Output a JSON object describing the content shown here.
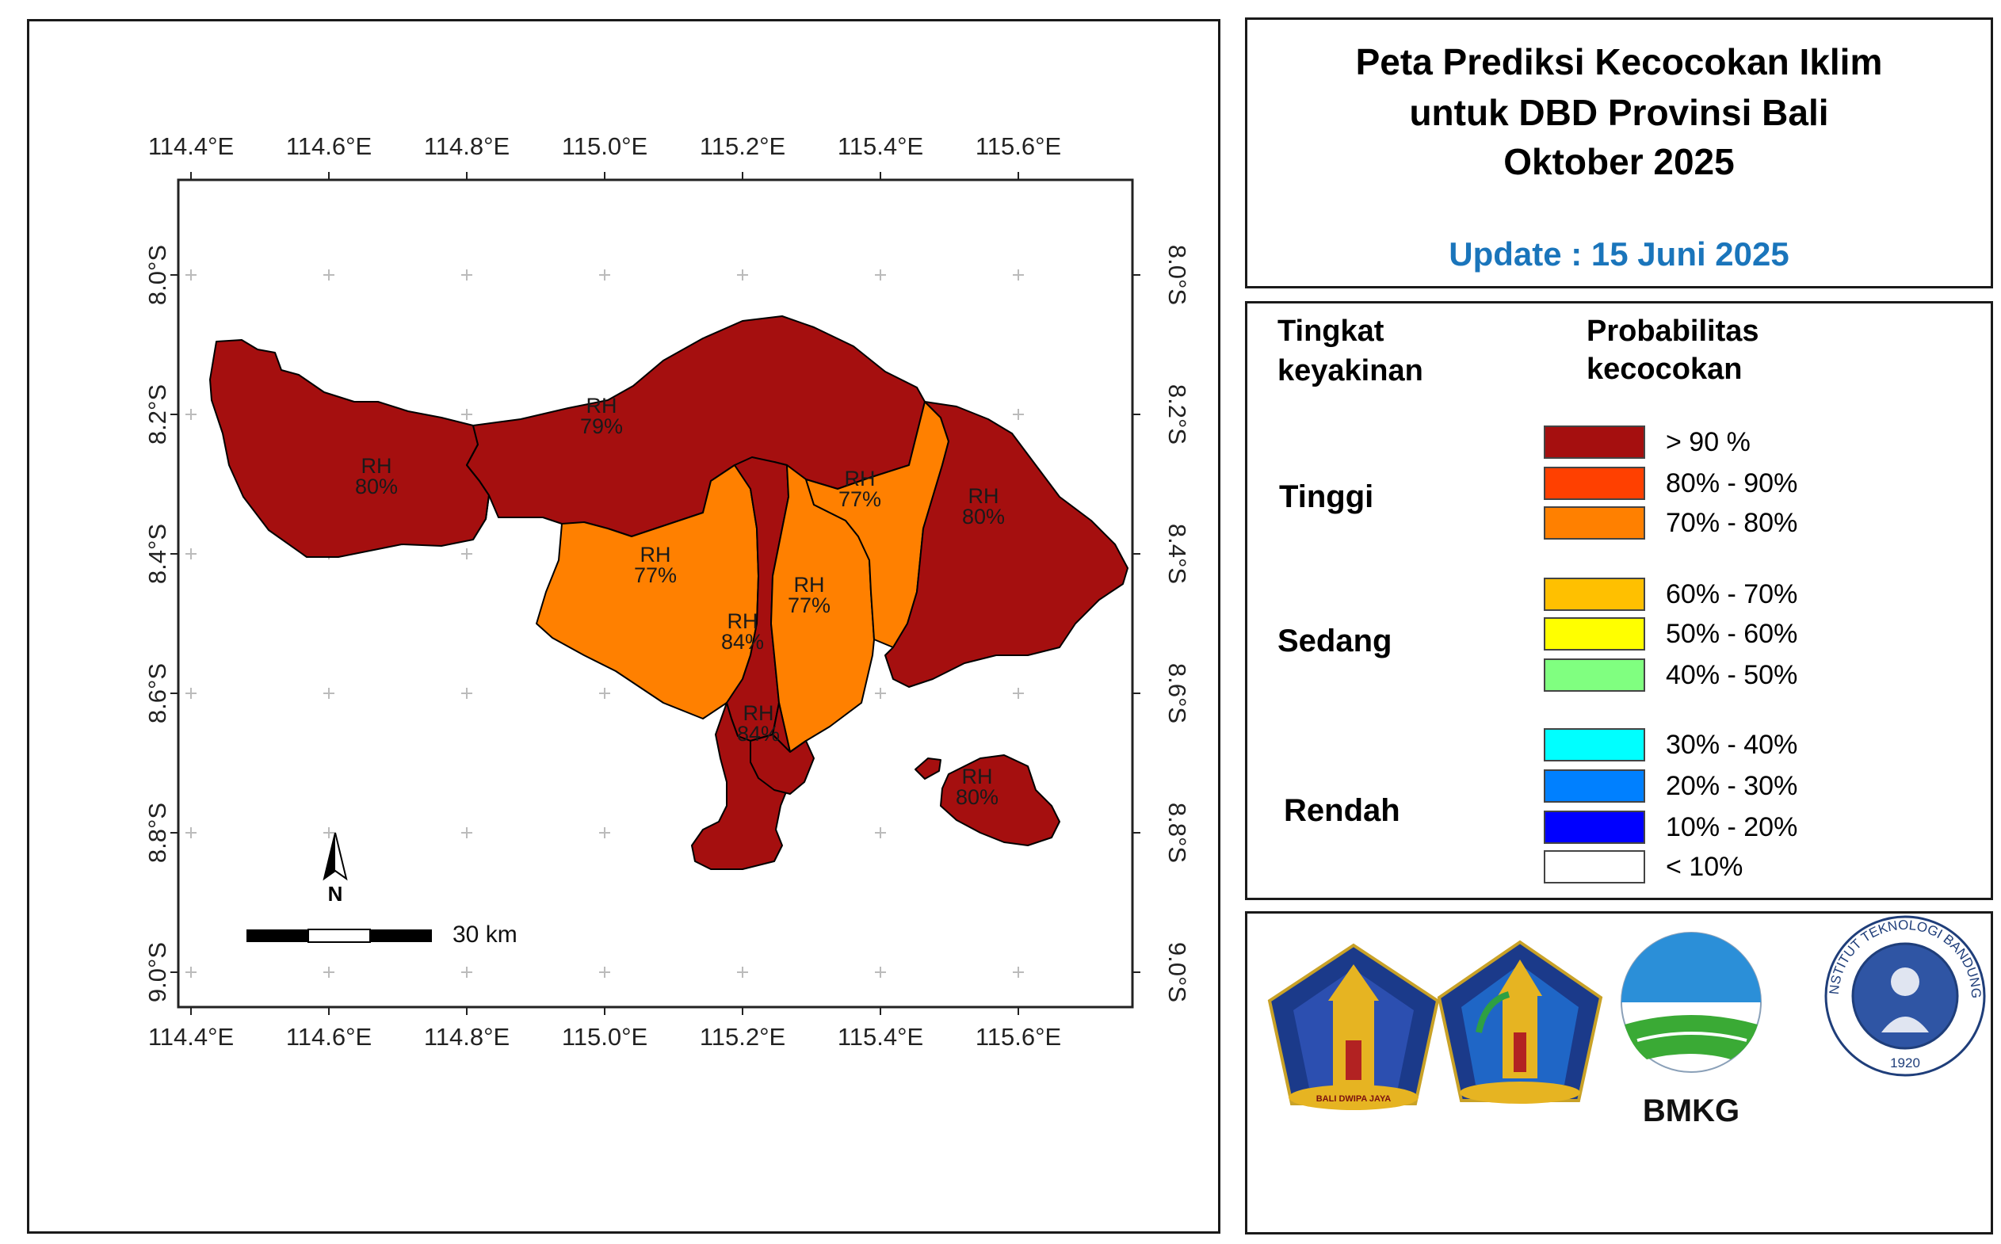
{
  "title": {
    "line1": "Peta Prediksi Kecocokan Iklim",
    "line2": "untuk DBD Provinsi Bali",
    "line3": "Oktober 2025",
    "update": "Update : 15 Juni 2025",
    "update_color": "#1a75bb"
  },
  "map": {
    "lon_labels": [
      "114.4°E",
      "114.6°E",
      "114.8°E",
      "115.0°E",
      "115.2°E",
      "115.4°E",
      "115.6°E"
    ],
    "lat_labels": [
      "8.0°S",
      "8.2°S",
      "8.4°S",
      "8.6°S",
      "8.8°S",
      "9.0°S"
    ],
    "north_label": "N",
    "scale_label": "30 km",
    "regions": [
      {
        "name": "RH",
        "value": "80%",
        "fill": "#a50f0f"
      },
      {
        "name": "RH",
        "value": "79%",
        "fill": "#a50f0f"
      },
      {
        "name": "RH",
        "value": "77%",
        "fill": "#ff8000"
      },
      {
        "name": "RH",
        "value": "77%",
        "fill": "#ff8000"
      },
      {
        "name": "RH",
        "value": "77%",
        "fill": "#ff8000"
      },
      {
        "name": "RH",
        "value": "80%",
        "fill": "#a50f0f"
      },
      {
        "name": "RH",
        "value": "84%",
        "fill": "#a50f0f"
      },
      {
        "name": "RH",
        "value": "84%",
        "fill": "#a50f0f"
      },
      {
        "name": "RH",
        "value": "80%",
        "fill": "#a50f0f"
      }
    ]
  },
  "legend": {
    "header_left_1": "Tingkat",
    "header_left_2": "keyakinan",
    "header_right_1": "Probabilitas",
    "header_right_2": "kecocokan",
    "groups": [
      "Tinggi",
      "Sedang",
      "Rendah"
    ],
    "items": [
      {
        "label": "> 90 %",
        "color": "#a50f0f"
      },
      {
        "label": "80% - 90%",
        "color": "#ff4000"
      },
      {
        "label": "70% - 80%",
        "color": "#ff8000"
      },
      {
        "label": "60% - 70%",
        "color": "#ffc000"
      },
      {
        "label": "50% - 60%",
        "color": "#ffff00"
      },
      {
        "label": "40% - 50%",
        "color": "#80ff80"
      },
      {
        "label": "30% - 40%",
        "color": "#00ffff"
      },
      {
        "label": "20% - 30%",
        "color": "#0080ff"
      },
      {
        "label": "10% - 20%",
        "color": "#0000ff"
      },
      {
        "label": "< 10%",
        "color": "#ffffff"
      }
    ]
  },
  "logos": {
    "bmkg_label": "BMKG",
    "itb_ring_text": "INSTITUT TEKNOLOGI BANDUNG",
    "itb_year": "1920",
    "bali_motto": "BALI DWIPA JAYA"
  }
}
